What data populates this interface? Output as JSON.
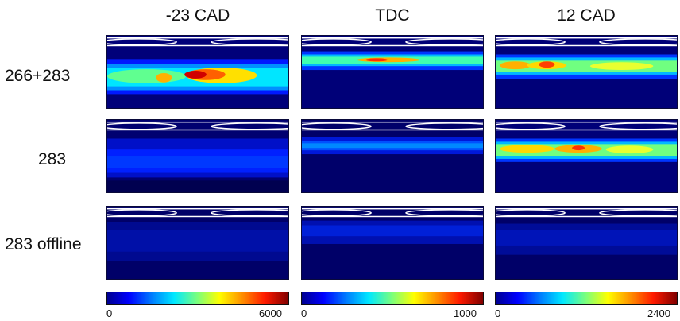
{
  "columns": [
    {
      "title": "-23 CAD",
      "colorbar": {
        "min": "0",
        "max": "6000"
      }
    },
    {
      "title": "TDC",
      "colorbar": {
        "min": "0",
        "max": "1000"
      }
    },
    {
      "title": "12 CAD",
      "colorbar": {
        "min": "0",
        "max": "2400"
      }
    }
  ],
  "rows": [
    {
      "label": "266+283"
    },
    {
      "label": "283"
    },
    {
      "label": "283 offline"
    }
  ],
  "colormap": "jet"
}
